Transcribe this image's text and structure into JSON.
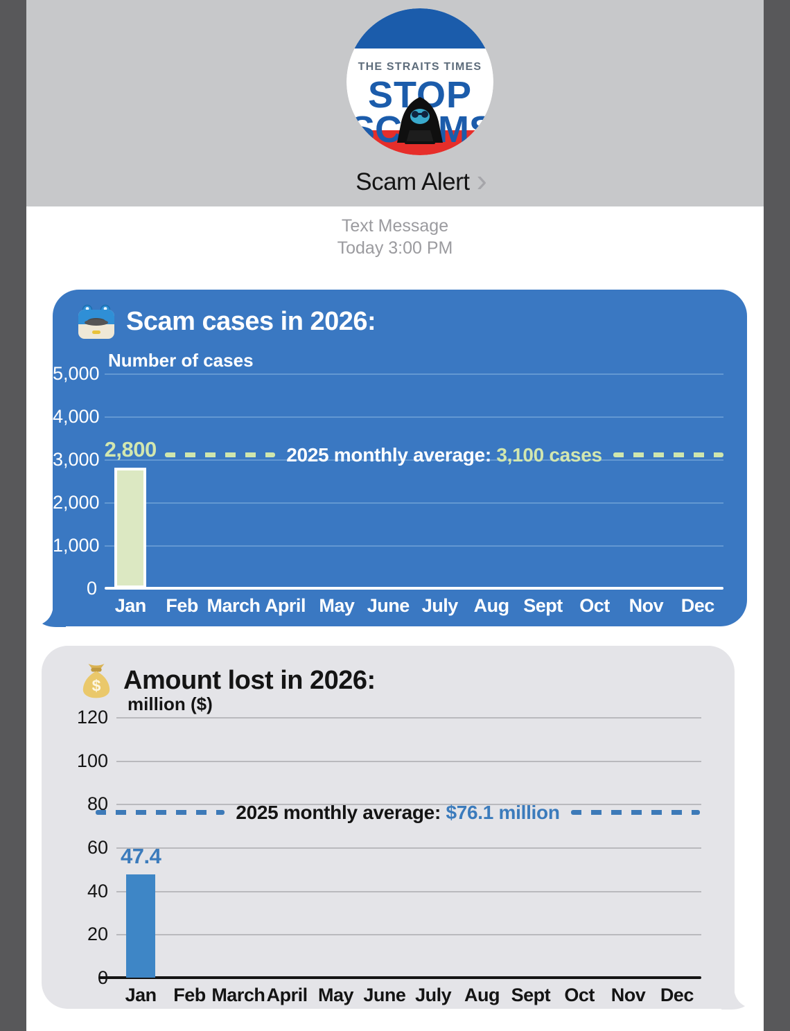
{
  "header": {
    "contact_name": "Scam Alert",
    "chevron": "›",
    "logo": {
      "top_text": "THE STRAITS TIMES",
      "line1": "STOP",
      "line2_left": "SC",
      "line2_right": "MS"
    }
  },
  "conversation": {
    "label": "Text Message",
    "timestamp": "Today 3:00 PM"
  },
  "colors": {
    "edge": "#58585a",
    "header_bar": "#c7c8ca",
    "bubble_blue": "#3a78c2",
    "bubble_gray": "#e4e4e8",
    "logo_blue": "#1b5cab",
    "logo_red": "#e62e2a",
    "logo_gray": "#5d6c7b"
  },
  "chart_data": [
    {
      "type": "bar",
      "title": "Scam cases in 2026:",
      "icon": "scam-detector-icon",
      "ylabel": "Number of cases",
      "xlabel": "",
      "categories": [
        "Jan",
        "Feb",
        "March",
        "April",
        "May",
        "June",
        "July",
        "Aug",
        "Sept",
        "Oct",
        "Nov",
        "Dec"
      ],
      "values": [
        2800,
        null,
        null,
        null,
        null,
        null,
        null,
        null,
        null,
        null,
        null,
        null
      ],
      "value_labels": [
        "2,800",
        null,
        null,
        null,
        null,
        null,
        null,
        null,
        null,
        null,
        null,
        null
      ],
      "ylim": [
        0,
        5000
      ],
      "ytick_values": [
        5000,
        4000,
        3000,
        2000,
        1000,
        0
      ],
      "ytick_labels": [
        "5,000",
        "4,000",
        "3,000",
        "2,000",
        "1,000",
        "0"
      ],
      "grid": true,
      "legend": null,
      "reference_line": {
        "value": 3100,
        "label_prefix": "2025 monthly average:",
        "label_value": "3,100 cases"
      },
      "colors": {
        "bar": "#dce8c2",
        "bar_border": "#ffffff",
        "text": "#ffffff",
        "accent": "#d2e7af",
        "grid": "#6398d2",
        "axis": "#ffffff",
        "ref_dash": "#cfe6ad"
      }
    },
    {
      "type": "bar",
      "title": "Amount lost in 2026:",
      "icon": "money-bag-icon",
      "ylabel": "million ($)",
      "xlabel": "",
      "categories": [
        "Jan",
        "Feb",
        "March",
        "April",
        "May",
        "June",
        "July",
        "Aug",
        "Sept",
        "Oct",
        "Nov",
        "Dec"
      ],
      "values": [
        47.4,
        null,
        null,
        null,
        null,
        null,
        null,
        null,
        null,
        null,
        null,
        null
      ],
      "value_labels": [
        "47.4",
        null,
        null,
        null,
        null,
        null,
        null,
        null,
        null,
        null,
        null,
        null
      ],
      "ylim": [
        0,
        120
      ],
      "ytick_values": [
        120,
        100,
        80,
        60,
        40,
        20,
        0
      ],
      "ytick_labels": [
        "120",
        "100",
        "80",
        "60",
        "40",
        "20",
        "0"
      ],
      "grid": true,
      "legend": null,
      "reference_line": {
        "value": 76.1,
        "label_prefix": "2025 monthly average:",
        "label_value": "$76.1 million"
      },
      "colors": {
        "bar": "#3e86c6",
        "bar_border": null,
        "text": "#141414",
        "accent": "#3b7bbc",
        "grid": "#b9b9bd",
        "axis": "#141414",
        "ref_dash": "#3d7ab8"
      }
    }
  ]
}
